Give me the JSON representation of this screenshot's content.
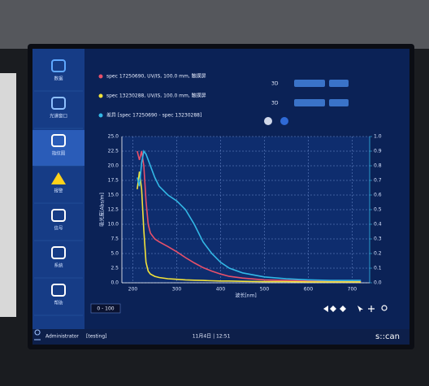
{
  "sidebar": {
    "items": [
      "数据",
      "光谱窗口",
      "指纹图",
      "报警",
      "信号",
      "系统",
      "帮助"
    ]
  },
  "controls": {
    "mode_1": "3D",
    "mode_2": "3D",
    "range": "0 - 100"
  },
  "status": {
    "user": "Administrator",
    "role": "[testing]",
    "datetime": "11月4日 | 12:51",
    "brand": "s::can"
  },
  "chart_data": {
    "type": "line",
    "x_label": "波长[nm]",
    "y_label": "吸光度[Abs/m]",
    "x": [
      210,
      215,
      220,
      225,
      230,
      235,
      240,
      250,
      260,
      280,
      300,
      320,
      340,
      360,
      380,
      400,
      420,
      450,
      500,
      550,
      600,
      650,
      700,
      720
    ],
    "series": [
      {
        "name": "spec 17250690, UV/IS, 100.0 mm, 触摸屏",
        "color": "#e8506a",
        "values": [
          22.5,
          21,
          22.5,
          20,
          14,
          10,
          8.5,
          7.5,
          7,
          6.2,
          5.3,
          4.3,
          3.4,
          2.6,
          2,
          1.5,
          1.1,
          0.8,
          0.5,
          0.4,
          0.3,
          0.25,
          0.2,
          0.2
        ]
      },
      {
        "name": "spec 13230288, UV/IS, 100.0 mm, 触摸屏",
        "color": "#f2e23a",
        "values": [
          16,
          19,
          16,
          9,
          3.5,
          2,
          1.5,
          1.1,
          0.9,
          0.7,
          0.6,
          0.5,
          0.45,
          0.4,
          0.35,
          0.3,
          0.3,
          0.25,
          0.2,
          0.2,
          0.15,
          0.15,
          0.15,
          0.15
        ]
      },
      {
        "name": "差异 [spec 17250690 - spec 13230288]",
        "color": "#33b8e6",
        "values": [
          18,
          16.5,
          20.5,
          22.5,
          22,
          21,
          20,
          18,
          16.5,
          15,
          14,
          12.5,
          10,
          7,
          5,
          3.5,
          2.5,
          1.7,
          1,
          0.7,
          0.5,
          0.4,
          0.4,
          0.4
        ]
      }
    ],
    "xlim": [
      175,
      740
    ],
    "xticks": [
      200,
      300,
      400,
      500,
      600,
      700
    ],
    "ylim": [
      0,
      25
    ],
    "yticks": [
      {
        "value": 0,
        "label": "0.0"
      },
      2.5,
      {
        "value": 5,
        "label": "5.0"
      },
      7.5,
      {
        "value": 10,
        "label": "10.0"
      },
      12.5,
      {
        "value": 15,
        "label": "15.0"
      },
      17.5,
      {
        "value": 20,
        "label": "20.0"
      },
      22.5,
      {
        "value": 25,
        "label": "25.0"
      }
    ],
    "y2lim": [
      0,
      1
    ],
    "y2ticks": [
      {
        "value": 0,
        "label": "0.0"
      },
      0.1,
      0.2,
      0.3,
      0.4,
      0.5,
      0.6,
      0.7,
      0.8,
      0.9,
      {
        "value": 1,
        "label": "1.0"
      }
    ],
    "grid": true
  }
}
